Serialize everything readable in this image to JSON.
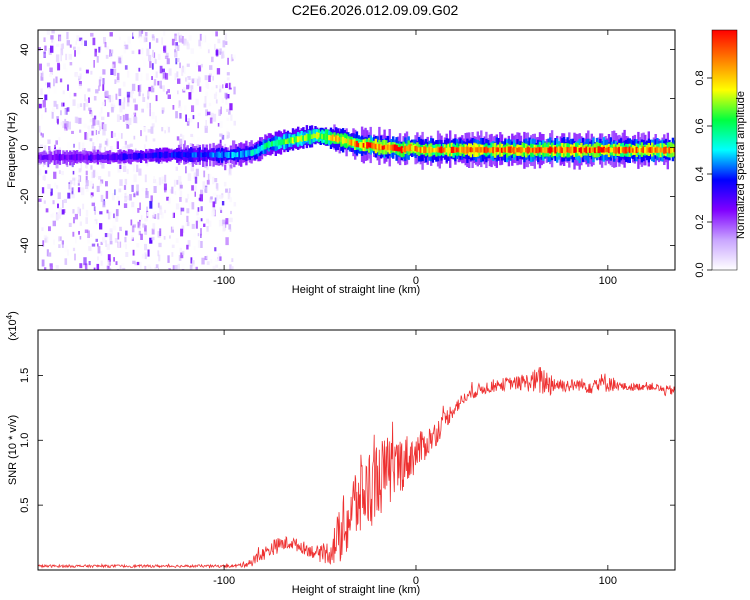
{
  "title": "C2E6.2026.012.09.09.G02",
  "chart_data": [
    {
      "type": "heatmap",
      "xlabel": "Height of straight line (km)",
      "ylabel": "Frequency (Hz)",
      "xlim": [
        -197,
        135
      ],
      "ylim": [
        -50,
        48
      ],
      "x_ticks": [
        -100,
        0,
        100
      ],
      "x_tick_labels": [
        "-100",
        "0",
        "100"
      ],
      "y_ticks": [
        -40,
        -20,
        0,
        20,
        40
      ],
      "y_tick_labels": [
        "-40",
        "-20",
        "0",
        "20",
        "40"
      ],
      "grid": false,
      "colorbar": {
        "label": "Normalized spectral amplitude",
        "range": [
          0,
          1
        ],
        "ticks": [
          0.0,
          0.2,
          0.4,
          0.6,
          0.8
        ],
        "tick_labels": [
          "0.0",
          "0.2",
          "0.4",
          "0.6",
          "0.8"
        ],
        "colors": [
          "#ffffff",
          "#c9a6ff",
          "#8000ff",
          "#0000ff",
          "#00ffff",
          "#00ff40",
          "#ffff00",
          "#ff8000",
          "#ff0000"
        ]
      },
      "noise_region_x": [
        -197,
        -95
      ],
      "ridge": {
        "x": [
          -197,
          -160,
          -130,
          -110,
          -95,
          -85,
          -78,
          -72,
          -65,
          -58,
          -52,
          -45,
          -38,
          -30,
          -25,
          -18,
          -12,
          -8,
          -3,
          2,
          10,
          30,
          60,
          100,
          135
        ],
        "freq": [
          -4,
          -4,
          -3,
          -3,
          -3,
          -2,
          1,
          2,
          3,
          4,
          5,
          4,
          3,
          1,
          1,
          0,
          0,
          -1,
          0,
          -1,
          -1,
          -1,
          -1,
          -1,
          -1
        ],
        "amplitude": [
          0.25,
          0.3,
          0.35,
          0.4,
          0.45,
          0.5,
          0.55,
          0.6,
          0.65,
          0.7,
          0.7,
          0.75,
          0.8,
          0.85,
          0.9,
          0.9,
          0.9,
          0.9,
          0.85,
          0.85,
          0.85,
          0.9,
          0.9,
          0.9,
          0.85
        ]
      }
    },
    {
      "type": "line",
      "xlabel": "Height of straight line (km)",
      "ylabel": "SNR (10 * v/v)",
      "y_multiplier": "(x10",
      "y_multiplier_exp": "4",
      "y_multiplier_close": ")",
      "xlim": [
        -197,
        135
      ],
      "ylim": [
        0,
        1.85
      ],
      "x_ticks": [
        -100,
        0,
        100
      ],
      "x_tick_labels": [
        "-100",
        "0",
        "100"
      ],
      "y_ticks": [
        0.5,
        1.0,
        1.5
      ],
      "y_tick_labels": [
        "0.5",
        "1.0",
        "1.5"
      ],
      "grid": false,
      "series": [
        {
          "color": "#ee3030",
          "x": [
            -197,
            -180,
            -160,
            -140,
            -120,
            -100,
            -95,
            -90,
            -85,
            -80,
            -75,
            -70,
            -65,
            -60,
            -55,
            -50,
            -45,
            -40,
            -35,
            -30,
            -25,
            -20,
            -15,
            -10,
            -5,
            0,
            5,
            10,
            15,
            20,
            25,
            30,
            35,
            40,
            45,
            50,
            55,
            60,
            65,
            70,
            75,
            80,
            85,
            90,
            95,
            100,
            105,
            110,
            115,
            120,
            125,
            130,
            135
          ],
          "y": [
            0.03,
            0.03,
            0.03,
            0.03,
            0.03,
            0.03,
            0.03,
            0.04,
            0.07,
            0.12,
            0.17,
            0.2,
            0.21,
            0.18,
            0.15,
            0.12,
            0.14,
            0.25,
            0.4,
            0.55,
            0.62,
            0.7,
            0.75,
            0.8,
            0.85,
            0.9,
            0.97,
            1.05,
            1.15,
            1.25,
            1.32,
            1.37,
            1.4,
            1.42,
            1.43,
            1.44,
            1.44,
            1.45,
            1.46,
            1.44,
            1.43,
            1.42,
            1.43,
            1.42,
            1.43,
            1.45,
            1.42,
            1.41,
            1.41,
            1.42,
            1.41,
            1.38,
            1.39
          ],
          "noise_amplitude": [
            0.01,
            0.01,
            0.01,
            0.01,
            0.01,
            0.01,
            0.01,
            0.02,
            0.04,
            0.05,
            0.06,
            0.06,
            0.05,
            0.05,
            0.05,
            0.06,
            0.1,
            0.22,
            0.3,
            0.32,
            0.32,
            0.3,
            0.28,
            0.25,
            0.2,
            0.15,
            0.12,
            0.1,
            0.08,
            0.06,
            0.05,
            0.05,
            0.05,
            0.05,
            0.05,
            0.05,
            0.06,
            0.08,
            0.12,
            0.1,
            0.06,
            0.05,
            0.05,
            0.06,
            0.08,
            0.08,
            0.04,
            0.03,
            0.03,
            0.03,
            0.03,
            0.04,
            0.04
          ]
        }
      ]
    }
  ]
}
